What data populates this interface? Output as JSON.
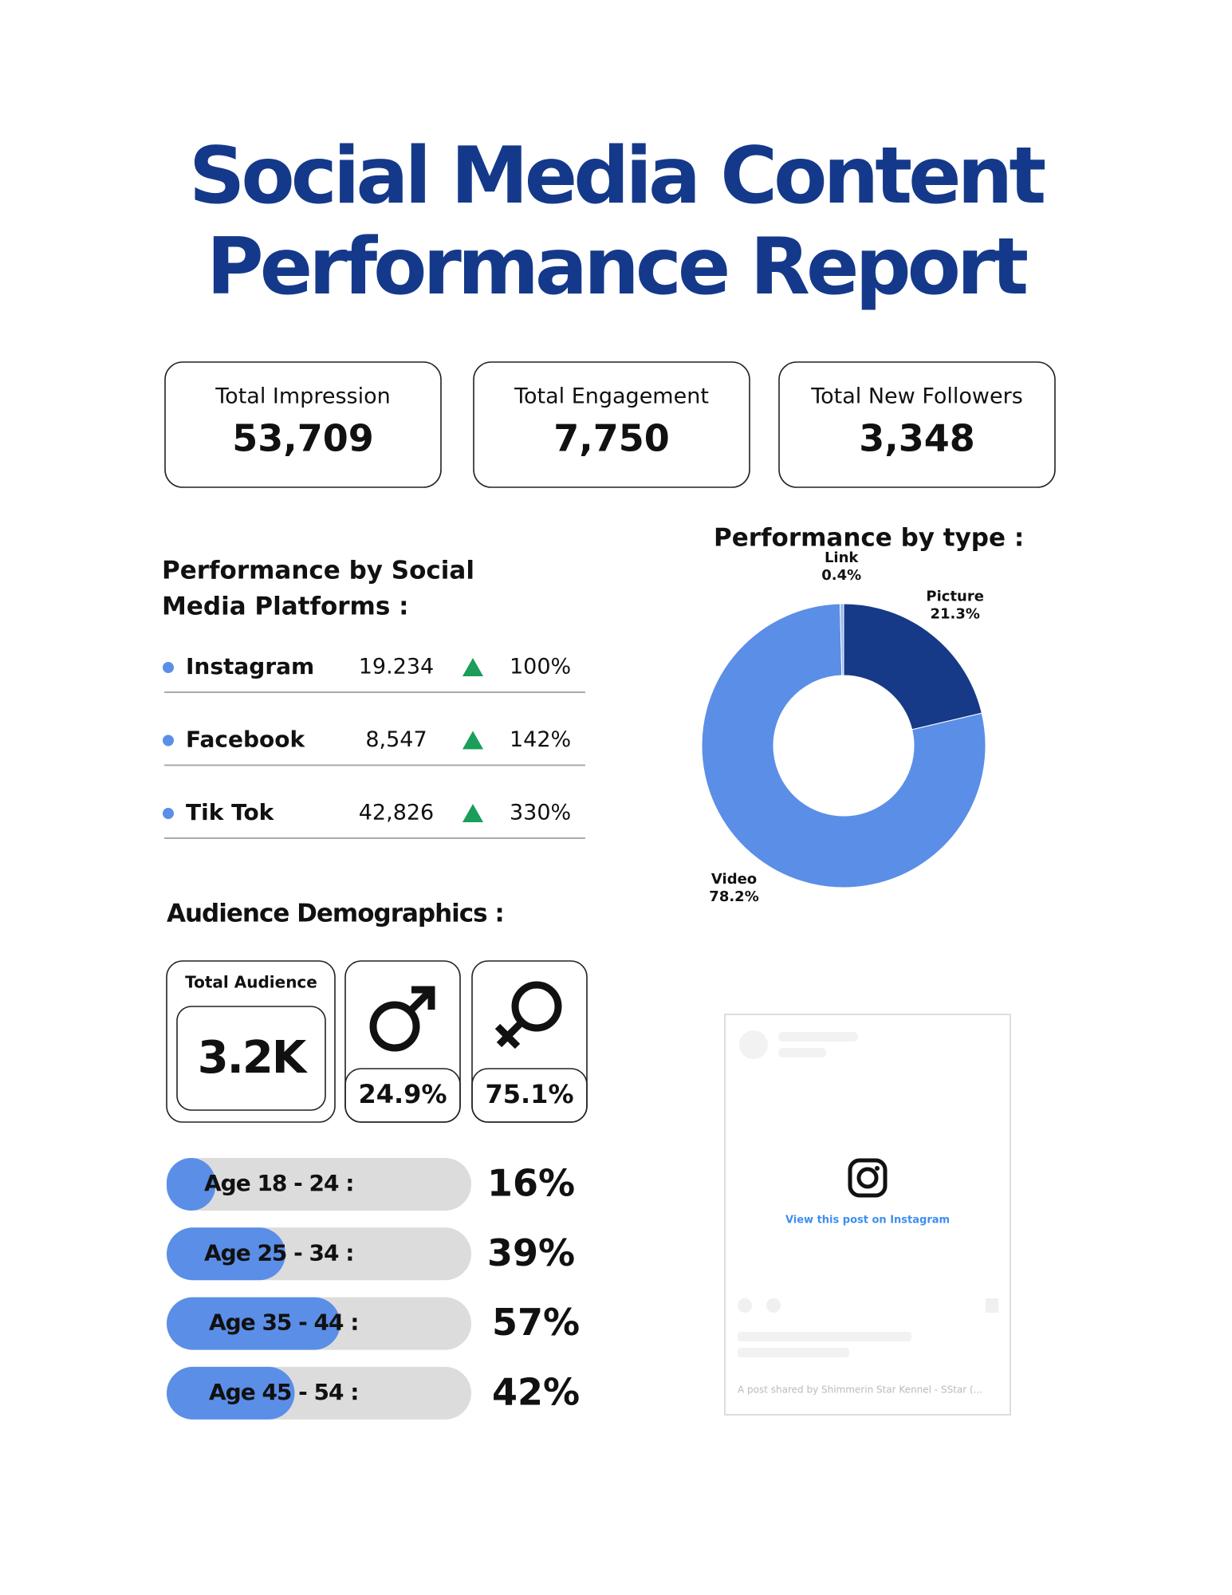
{
  "title": [
    "Social Media Content",
    "Performance Report"
  ],
  "stats": [
    {
      "label": "Total Impression",
      "value": "53,709"
    },
    {
      "label": "Total Engagement",
      "value": "7,750"
    },
    {
      "label": "Total New Followers",
      "value": "3,348"
    }
  ],
  "platforms": {
    "heading": [
      "Performance by Social",
      "Media Platforms :"
    ],
    "rows": [
      {
        "name": "Instagram",
        "value": "19.234",
        "change": "100%"
      },
      {
        "name": "Facebook",
        "value": "8,547",
        "change": "142%"
      },
      {
        "name": "Tik Tok",
        "value": "42,826",
        "change": "330%"
      }
    ]
  },
  "type_chart": {
    "type": "donut",
    "title": "Performance by type :",
    "categories": [
      "Picture",
      "Video",
      "Link"
    ],
    "values": [
      21.3,
      78.2,
      0.4
    ],
    "value_labels": [
      "21.3%",
      "78.2%",
      "0.4%"
    ],
    "colors": [
      "#163a87",
      "#5b8ee6",
      "#9ab8ee"
    ]
  },
  "audience": {
    "heading": "Audience Demographics :",
    "total_label": "Total Audience",
    "total": "3.2K",
    "male": "24.9%",
    "female": "75.1%",
    "bar_color": "#5b8ee6",
    "ages": [
      {
        "label": "Age 18 - 24 :",
        "value": 16,
        "value_label": "16%"
      },
      {
        "label": "Age 25 - 34 :",
        "value": 39,
        "value_label": "39%"
      },
      {
        "label": "Age 35 - 44 :",
        "value": 57,
        "value_label": "57%"
      },
      {
        "label": "Age 45 - 54 :",
        "value": 42,
        "value_label": "42%"
      }
    ]
  },
  "instagram": {
    "link": "View this post on Instagram",
    "caption": "A post shared by Shimmerin Star Kennel - SStar (..."
  }
}
